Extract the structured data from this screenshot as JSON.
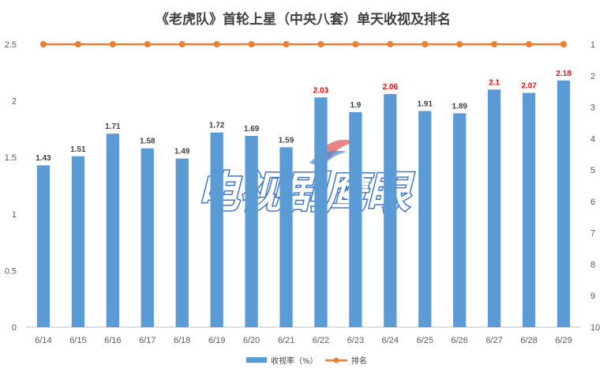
{
  "chart_data": {
    "type": "bar",
    "title": "《老虎队》首轮上星（中央八套）单天收视及排名",
    "categories": [
      "6/14",
      "6/15",
      "6/16",
      "6/17",
      "6/18",
      "6/19",
      "6/20",
      "6/21",
      "6/22",
      "6/23",
      "6/24",
      "6/25",
      "6/26",
      "6/27",
      "6/28",
      "6/29"
    ],
    "series": [
      {
        "name": "收视率（%）",
        "type": "bar",
        "axis": "left",
        "color": "#5b9bd5",
        "values": [
          1.43,
          1.51,
          1.71,
          1.58,
          1.49,
          1.72,
          1.69,
          1.59,
          2.03,
          1.9,
          2.06,
          1.91,
          1.89,
          2.1,
          2.07,
          2.18
        ],
        "labels": [
          "1.43",
          "1.51",
          "1.71",
          "1.58",
          "1.49",
          "1.72",
          "1.69",
          "1.59",
          "2.03",
          "1.9",
          "2.06",
          "1.91",
          "1.89",
          "2.1",
          "2.07",
          "2.18"
        ],
        "label_colors": [
          "#404040",
          "#404040",
          "#404040",
          "#404040",
          "#404040",
          "#404040",
          "#404040",
          "#404040",
          "#ff0000",
          "#404040",
          "#ff0000",
          "#404040",
          "#404040",
          "#ff0000",
          "#ff0000",
          "#ff0000"
        ]
      },
      {
        "name": "排名",
        "type": "line",
        "axis": "right",
        "color": "#ed7d31",
        "values": [
          1,
          1,
          1,
          1,
          1,
          1,
          1,
          1,
          1,
          1,
          1,
          1,
          1,
          1,
          1,
          1
        ]
      }
    ],
    "ylim_left": [
      0,
      2.5
    ],
    "yticks_left": [
      "0",
      "0.5",
      "1",
      "1.5",
      "2",
      "2.5"
    ],
    "ylim_right": [
      1,
      10
    ],
    "right_reversed": true,
    "yticks_right": [
      "1",
      "2",
      "3",
      "4",
      "5",
      "6",
      "7",
      "8",
      "9",
      "10"
    ],
    "grid": false,
    "legend": "bottom",
    "watermark": "电视剧鹰眼"
  }
}
